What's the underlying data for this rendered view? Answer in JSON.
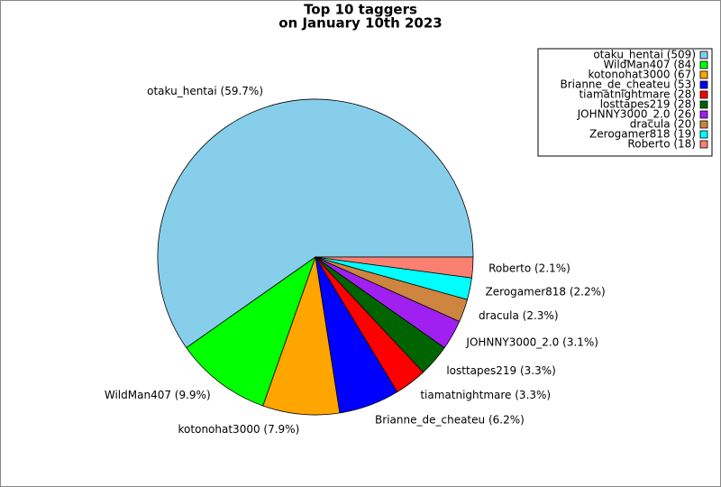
{
  "chart_data": {
    "type": "pie",
    "title": "Top 10 taggers",
    "subtitle": "on January 10th 2023",
    "values": [
      509,
      84,
      67,
      53,
      28,
      28,
      26,
      20,
      19,
      18
    ],
    "slice_labels": [
      "otaku_hentai (59.7%)",
      "WildMan407 (9.9%)",
      "kotonohat3000 (7.9%)",
      "Brianne_de_cheateu (6.2%)",
      "tiamatnightmare (3.3%)",
      "losttapes219 (3.3%)",
      "JOHNNY3000_2.0 (3.1%)",
      "dracula (2.3%)",
      "Zerogamer818 (2.2%)",
      "Roberto (2.1%)"
    ],
    "legend_labels": [
      "otaku_hentai (509)",
      "WildMan407 (84)",
      "kotonohat3000 (67)",
      "Brianne_de_cheateu (53)",
      "tiamatnightmare (28)",
      "losttapes219 (28)",
      "JOHNNY3000_2.0 (26)",
      "dracula (20)",
      "Zerogamer818 (19)",
      "Roberto (18)"
    ],
    "colors": [
      "#87ceeb",
      "#00ff00",
      "#ffa500",
      "#0000ff",
      "#ff0000",
      "#006400",
      "#a020f0",
      "#cd853f",
      "#00ffff",
      "#fa8072"
    ],
    "legend": "upper right"
  }
}
